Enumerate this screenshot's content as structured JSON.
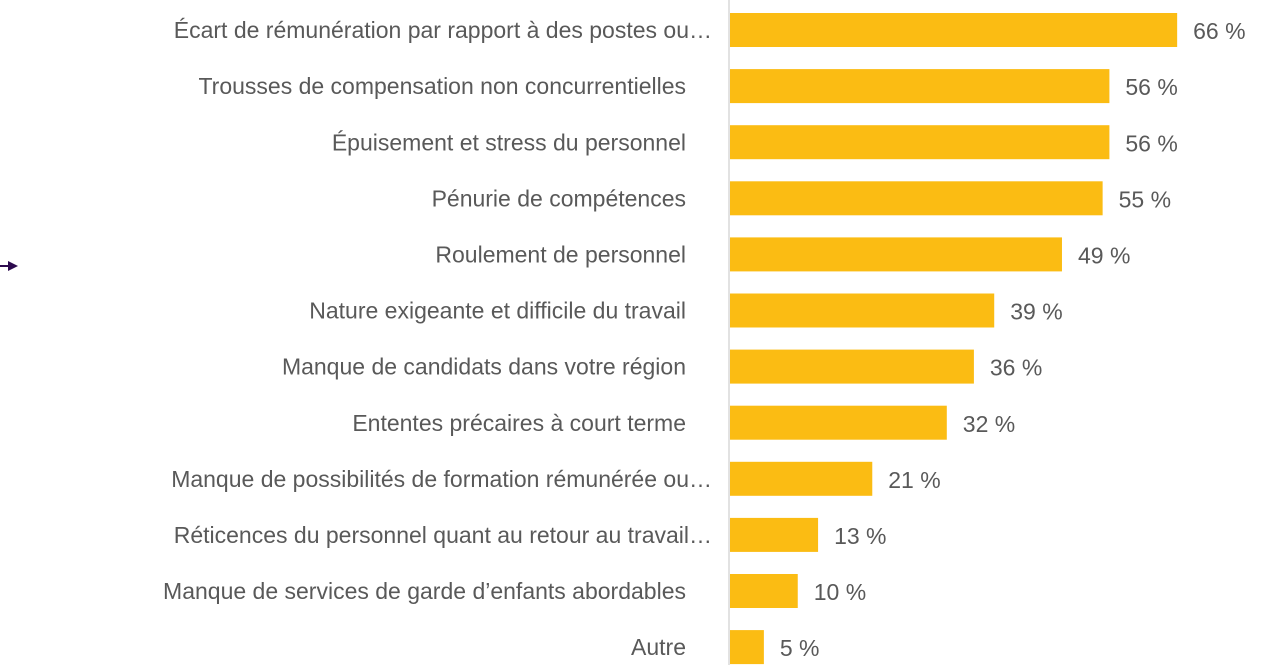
{
  "chart_data": {
    "type": "bar",
    "orientation": "horizontal",
    "categories": [
      "Écart de rémunération par rapport à des postes ou…",
      "Trousses de compensation non concurrentielles",
      "Épuisement et stress du personnel",
      "Pénurie de compétences",
      "Roulement de personnel",
      "Nature exigeante et difficile du travail",
      "Manque de candidats dans votre région",
      "Ententes précaires à court terme",
      "Manque de possibilités de formation rémunérée ou…",
      "Réticences du personnel quant au retour au travail…",
      "Manque de services de garde d’enfants abordables",
      "Autre"
    ],
    "values": [
      66,
      56,
      56,
      55,
      49,
      39,
      36,
      32,
      21,
      13,
      10,
      5
    ],
    "value_labels": [
      "66 %",
      "56 %",
      "56 %",
      "55 %",
      "49 %",
      "39 %",
      "36 %",
      "32 %",
      "21 %",
      "13 %",
      "10 %",
      "5 %"
    ],
    "color": "#fbbc13",
    "xlim": [
      0,
      80
    ]
  }
}
